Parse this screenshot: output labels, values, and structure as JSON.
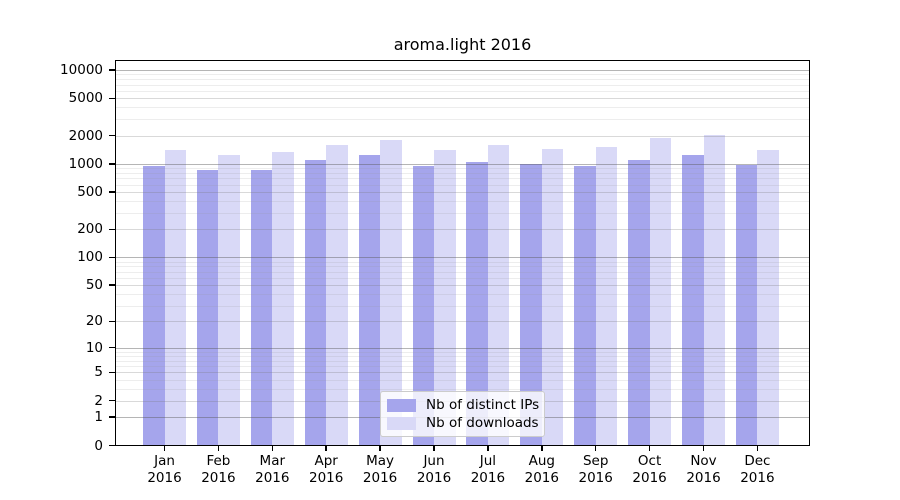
{
  "chart_data": {
    "type": "bar",
    "title": "aroma.light 2016",
    "categories": [
      "Jan",
      "Feb",
      "Mar",
      "Apr",
      "May",
      "Jun",
      "Jul",
      "Aug",
      "Sep",
      "Oct",
      "Nov",
      "Dec"
    ],
    "x_tick_second_line": "2016",
    "series": [
      {
        "name": "Nb of distinct IPs",
        "color": "#a5a5ec",
        "values": [
          950,
          850,
          850,
          1100,
          1250,
          950,
          1050,
          1000,
          960,
          1100,
          1250,
          970
        ]
      },
      {
        "name": "Nb of downloads",
        "color": "#d9d9f7",
        "values": [
          1400,
          1250,
          1350,
          1600,
          1800,
          1400,
          1600,
          1430,
          1500,
          1900,
          2050,
          1400
        ]
      }
    ],
    "yscale": "log10(value+1)",
    "y_ticks": [
      0,
      1,
      2,
      5,
      10,
      20,
      50,
      100,
      200,
      500,
      1000,
      2000,
      5000,
      10000
    ],
    "ylim": [
      0,
      12700
    ],
    "grid": "on",
    "legend_position": "lower center",
    "legend_labels": [
      "Nb of distinct IPs",
      "Nb of downloads"
    ]
  }
}
